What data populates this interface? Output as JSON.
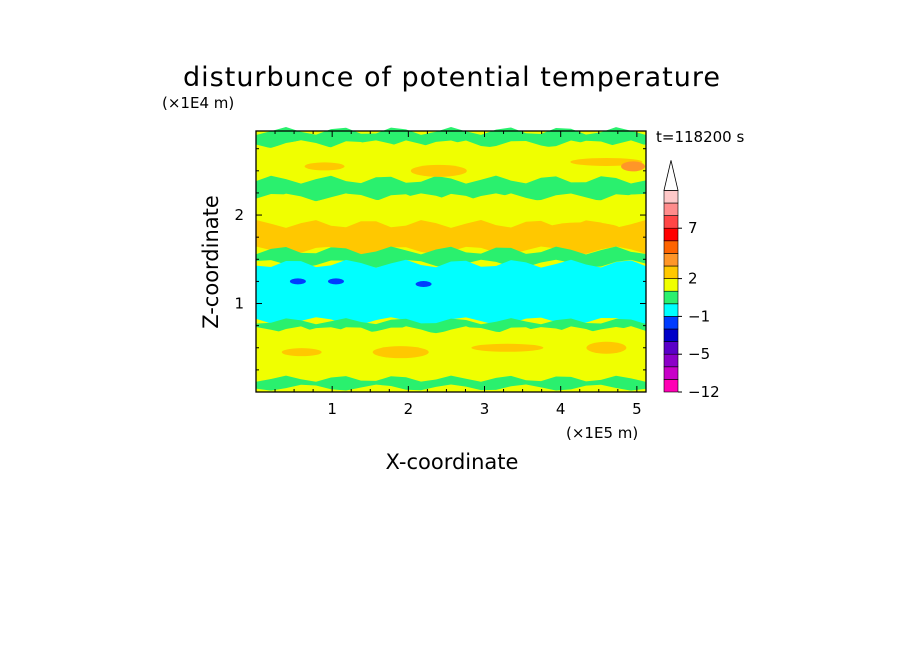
{
  "chart_data": {
    "type": "heatmap",
    "title": "disturbunce of potential temperature",
    "xlabel": "X-coordinate",
    "ylabel": "Z-coordinate",
    "x_unit": "(×1E5 m)",
    "y_unit": "(×1E4 m)",
    "time_label": "t=118200 s",
    "xlim": [
      0,
      5.12
    ],
    "ylim": [
      0,
      2.95
    ],
    "x_ticks": [
      "1",
      "2",
      "3",
      "4",
      "5"
    ],
    "y_ticks": [
      "1",
      "2"
    ],
    "colorbar_labels": [
      "7",
      "2",
      "−1",
      "−5",
      "−12"
    ],
    "colorbar_colors": [
      "#ff00b4",
      "#c800c8",
      "#8c00c8",
      "#5a00c8",
      "#0000c8",
      "#003cff",
      "#00ffff",
      "#2af06e",
      "#f0ff00",
      "#ffc800",
      "#ff9628",
      "#ff6400",
      "#ff0000",
      "#ff4646",
      "#ff8c8c",
      "#ffc8c8"
    ],
    "grid": false,
    "legend_position": "right (colorbar)",
    "bands": [
      {
        "z_min": 2.8,
        "z_max": 2.95,
        "level": "0 to 1"
      },
      {
        "z_min": 2.4,
        "z_max": 2.8,
        "level": "1 to 2"
      },
      {
        "z_min": 2.2,
        "z_max": 2.4,
        "level": "0 to 1"
      },
      {
        "z_min": 1.9,
        "z_max": 2.2,
        "level": "1 to 2"
      },
      {
        "z_min": 1.6,
        "z_max": 1.9,
        "level": "2 to 3"
      },
      {
        "z_min": 1.45,
        "z_max": 1.6,
        "level": "0 to 1"
      },
      {
        "z_min": 0.8,
        "z_max": 1.45,
        "level": "-1 to 0"
      },
      {
        "z_min": 0.7,
        "z_max": 0.8,
        "level": "0 to 1"
      },
      {
        "z_min": 0.15,
        "z_max": 0.7,
        "level": "1 to 2"
      },
      {
        "z_min": 0.05,
        "z_max": 0.15,
        "level": "0 to 1"
      }
    ]
  }
}
